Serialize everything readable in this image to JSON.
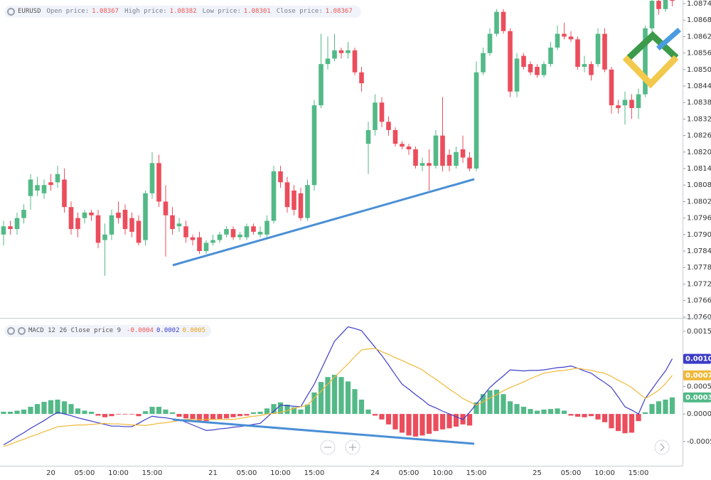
{
  "chart_data": [
    {
      "type": "candlestick",
      "symbol": "EURUSD",
      "fields": [
        {
          "label": "Open price:",
          "value": 1.08367
        },
        {
          "label": "High price:",
          "value": 1.08382
        },
        {
          "label": "Low price:",
          "value": 1.08301
        },
        {
          "label": "Close price:",
          "value": 1.08367
        }
      ],
      "up_color": "#53b987",
      "down_color": "#eb4d5c",
      "open": [
        1.079,
        1.0793,
        1.0792,
        1.0796,
        1.0804,
        1.0806,
        1.0805,
        1.0809,
        1.0809,
        1.081,
        1.08,
        1.0796,
        1.0796,
        1.0798,
        1.0797,
        1.0788,
        1.079,
        1.0798,
        1.0799,
        1.0796,
        1.0795,
        1.0788,
        1.0805,
        1.0816,
        1.0802,
        1.0797,
        1.0793,
        1.0793,
        1.0789,
        1.0789,
        1.0784,
        1.0787,
        1.0788,
        1.079,
        1.0792,
        1.0789,
        1.0789,
        1.0793,
        1.079,
        1.079,
        1.0795,
        1.0813,
        1.0809,
        1.0806,
        1.0805,
        1.0796,
        1.0808,
        1.0837,
        1.0852,
        1.0854,
        1.0857,
        1.0856,
        1.0857,
        1.0849,
        1.0823,
        1.0828,
        1.0838,
        1.0831,
        1.0828,
        1.0823,
        1.0822,
        1.0821,
        1.0815,
        1.0816,
        1.0815,
        1.0826,
        1.0819,
        1.0815,
        1.0821,
        1.0818,
        1.0814,
        1.0849,
        1.0856,
        1.0863,
        1.0871,
        1.0864,
        1.0842,
        1.0855,
        1.0852,
        1.0851,
        1.0848,
        1.0852,
        1.0858,
        1.0863,
        1.0862,
        1.0861,
        1.0851,
        1.0852,
        1.0852,
        1.0863,
        1.085,
        1.0837,
        1.0837,
        1.0839,
        1.0836,
        1.0841,
        1.0865,
        1.0875,
        1.0872,
        1.0876
      ],
      "high": [
        1.0795,
        1.0795,
        1.0798,
        1.0801,
        1.0812,
        1.0811,
        1.081,
        1.0812,
        1.0815,
        1.0814,
        1.0802,
        1.0798,
        1.0799,
        1.0799,
        1.0799,
        1.0794,
        1.0799,
        1.0802,
        1.0801,
        1.0798,
        1.0797,
        1.0806,
        1.082,
        1.0819,
        1.0808,
        1.08,
        1.0796,
        1.0795,
        1.079,
        1.0791,
        1.0788,
        1.079,
        1.0791,
        1.0793,
        1.0793,
        1.0791,
        1.0794,
        1.0794,
        1.0793,
        1.0797,
        1.0815,
        1.0815,
        1.0811,
        1.0808,
        1.0807,
        1.081,
        1.0839,
        1.0863,
        1.0862,
        1.0863,
        1.0858,
        1.086,
        1.0858,
        1.0851,
        1.0831,
        1.0841,
        1.084,
        1.0833,
        1.0829,
        1.0824,
        1.0823,
        1.0822,
        1.0818,
        1.0821,
        1.0828,
        1.084,
        1.0821,
        1.0822,
        1.0826,
        1.082,
        1.0853,
        1.0858,
        1.0865,
        1.0872,
        1.0872,
        1.0865,
        1.0856,
        1.0856,
        1.0853,
        1.0852,
        1.0853,
        1.086,
        1.0866,
        1.0867,
        1.0864,
        1.0862,
        1.0855,
        1.0853,
        1.0865,
        1.0865,
        1.0851,
        1.0839,
        1.0842,
        1.0841,
        1.0843,
        1.0866,
        1.0876,
        1.0876,
        1.0877,
        1.0877
      ],
      "low": [
        1.0786,
        1.079,
        1.079,
        1.0794,
        1.0799,
        1.0804,
        1.0803,
        1.0806,
        1.0807,
        1.0798,
        1.079,
        1.0789,
        1.0794,
        1.0795,
        1.0785,
        1.0775,
        1.0788,
        1.0794,
        1.079,
        1.0789,
        1.0786,
        1.0786,
        1.0803,
        1.08,
        1.0782,
        1.079,
        1.0791,
        1.0787,
        1.0786,
        1.0783,
        1.0783,
        1.0786,
        1.0787,
        1.0789,
        1.0788,
        1.0788,
        1.0788,
        1.079,
        1.0789,
        1.0789,
        1.0794,
        1.0807,
        1.0798,
        1.0797,
        1.0795,
        1.0795,
        1.0806,
        1.0836,
        1.085,
        1.0853,
        1.0854,
        1.0854,
        1.0848,
        1.0842,
        1.0812,
        1.0826,
        1.0829,
        1.0826,
        1.0822,
        1.0821,
        1.0819,
        1.0814,
        1.0813,
        1.0806,
        1.0814,
        1.0813,
        1.0813,
        1.0814,
        1.0816,
        1.0813,
        1.0813,
        1.0848,
        1.0855,
        1.0862,
        1.0863,
        1.084,
        1.084,
        1.085,
        1.0848,
        1.0847,
        1.0847,
        1.0851,
        1.0857,
        1.0861,
        1.086,
        1.085,
        1.0849,
        1.0846,
        1.0851,
        1.0849,
        1.0834,
        1.0834,
        1.083,
        1.0832,
        1.0832,
        1.084,
        1.0863,
        1.087,
        1.0871,
        1.0873
      ],
      "close": [
        1.0793,
        1.0792,
        1.0796,
        1.0799,
        1.081,
        1.0808,
        1.0808,
        1.0808,
        1.0812,
        1.08,
        1.0792,
        1.0792,
        1.0798,
        1.0797,
        1.0787,
        1.079,
        1.0797,
        1.0796,
        1.0792,
        1.0791,
        1.0787,
        1.0805,
        1.0816,
        1.0802,
        1.0797,
        1.0792,
        1.0794,
        1.0789,
        1.0788,
        1.0784,
        1.0787,
        1.0788,
        1.079,
        1.0792,
        1.0789,
        1.079,
        1.0793,
        1.0791,
        1.0791,
        1.0795,
        1.0813,
        1.0809,
        1.08,
        1.0799,
        1.0796,
        1.0808,
        1.0837,
        1.0852,
        1.0854,
        1.0857,
        1.0856,
        1.0857,
        1.0849,
        1.0845,
        1.0828,
        1.0838,
        1.0831,
        1.0828,
        1.0823,
        1.0822,
        1.0821,
        1.0815,
        1.0816,
        1.0815,
        1.0826,
        1.0815,
        1.0815,
        1.082,
        1.0818,
        1.0814,
        1.0849,
        1.0856,
        1.0863,
        1.0871,
        1.0864,
        1.0842,
        1.0854,
        1.0851,
        1.0849,
        1.0848,
        1.0852,
        1.0858,
        1.0863,
        1.0862,
        1.0861,
        1.0851,
        1.0852,
        1.0848,
        1.0863,
        1.085,
        1.0837,
        1.0836,
        1.0839,
        1.0836,
        1.0841,
        1.0865,
        1.0875,
        1.0872,
        1.0876,
        1.0875
      ],
      "ylim": [
        1.07597,
        1.08753
      ],
      "yticks": [
        {
          "value": 1.0874,
          "label": "1.08740"
        },
        {
          "value": 1.0868,
          "label": "1.08680"
        },
        {
          "value": 1.0862,
          "label": "1.08620"
        },
        {
          "value": 1.0856,
          "label": "1.08560"
        },
        {
          "value": 1.085,
          "label": "1.08500"
        },
        {
          "value": 1.0844,
          "label": "1.08440"
        },
        {
          "value": 1.0838,
          "label": "1.08380"
        },
        {
          "value": 1.0832,
          "label": "1.08320"
        },
        {
          "value": 1.0826,
          "label": "1.08260"
        },
        {
          "value": 1.082,
          "label": "1.08200"
        },
        {
          "value": 1.0814,
          "label": "1.08140"
        },
        {
          "value": 1.0808,
          "label": "1.08080"
        },
        {
          "value": 1.0802,
          "label": "1.08020"
        },
        {
          "value": 1.0796,
          "label": "1.07960"
        },
        {
          "value": 1.079,
          "label": "1.07900"
        },
        {
          "value": 1.0784,
          "label": "1.07840"
        },
        {
          "value": 1.0778,
          "label": "1.07780"
        },
        {
          "value": 1.0772,
          "label": "1.07720"
        },
        {
          "value": 1.0766,
          "label": "1.07660"
        },
        {
          "value": 1.076,
          "label": "1.07600"
        }
      ]
    },
    {
      "type": "macd",
      "title": "MACD 12 26 Close price 9",
      "legend_values": [
        -0.0004,
        0.0002,
        0.0005
      ],
      "categories": [
        null,
        null,
        null,
        null,
        null,
        null,
        null,
        "20",
        null,
        null,
        null,
        null,
        "05:00",
        null,
        null,
        null,
        null,
        "10:00",
        null,
        null,
        null,
        null,
        "15:00",
        null,
        null,
        null,
        null,
        null,
        null,
        null,
        null,
        "21",
        null,
        null,
        null,
        null,
        "05:00",
        null,
        null,
        null,
        null,
        "10:00",
        null,
        null,
        null,
        null,
        "15:00",
        null,
        null,
        null,
        null,
        null,
        null,
        null,
        null,
        "24",
        null,
        null,
        null,
        null,
        "05:00",
        null,
        null,
        null,
        null,
        "10:00",
        null,
        null,
        null,
        null,
        "15:00",
        null,
        null,
        null,
        null,
        null,
        null,
        null,
        null,
        "25",
        null,
        null,
        null,
        null,
        "05:00",
        null,
        null,
        null,
        null,
        "10:00",
        null,
        null,
        null,
        null,
        "15:00",
        null,
        null,
        null,
        null,
        null
      ],
      "histogram": {
        "up_color": "#53b987",
        "down_color": "#eb4d5c",
        "marker": {
          "value": 0.0003,
          "label": "0.0003"
        },
        "values": [
          4e-05,
          4e-05,
          6e-05,
          8e-05,
          0.00013,
          0.00018,
          0.00022,
          0.00025,
          0.00026,
          0.00023,
          0.00018,
          0.0001,
          6e-05,
          4e-05,
          -3e-05,
          -6e-05,
          -4e-05,
          -1e-05,
          -1e-05,
          -1e-05,
          -4e-05,
          5e-05,
          0.00013,
          0.00013,
          8e-05,
          3e-05,
          -5e-05,
          -8e-05,
          -9e-05,
          -0.00012,
          -0.00013,
          -0.0001,
          -9e-05,
          -8e-05,
          -6e-05,
          -4e-05,
          -3e-05,
          3e-05,
          4e-05,
          0.0001,
          0.00018,
          0.00021,
          0.00017,
          0.00012,
          8e-05,
          0.00017,
          0.00039,
          0.00058,
          0.00067,
          0.00071,
          0.00067,
          0.00059,
          0.00045,
          0.00026,
          8e-05,
          -3e-05,
          -0.0001,
          -0.00019,
          -0.00028,
          -0.00034,
          -0.00039,
          -0.00041,
          -0.00039,
          -0.00036,
          -0.00031,
          -0.00028,
          -0.00026,
          -0.00023,
          -0.00019,
          -0.00021,
          0.00021,
          0.00036,
          0.00043,
          0.00044,
          0.00036,
          0.00023,
          0.00018,
          0.00013,
          9e-05,
          6e-05,
          8e-05,
          9e-05,
          0.0001,
          6e-05,
          -3e-05,
          -5e-05,
          -6e-05,
          -4e-05,
          -0.0001,
          -0.00015,
          -0.00026,
          -0.00031,
          -0.00035,
          -0.00034,
          -0.00013,
          3e-05,
          0.00018,
          0.00023,
          0.00026,
          0.0003
        ]
      },
      "series": [
        {
          "color": "#3d3dc8",
          "marker": {
            "value": 0.001,
            "label": "0.0010"
          },
          "values": [
            -0.00056,
            -0.00049,
            -0.00041,
            -0.00034,
            -0.00026,
            -0.00019,
            -0.00012,
            -4e-05,
            3e-05,
            0,
            -3e-05,
            -7e-05,
            -0.0001,
            -0.00013,
            -0.00016,
            -0.00019,
            -0.00022,
            -0.00022,
            -0.00023,
            -0.00023,
            -0.00017,
            -0.0001,
            -4e-05,
            -6e-05,
            -7e-05,
            -9e-05,
            -0.0001,
            -0.00015,
            -0.0002,
            -0.00025,
            -0.0003,
            -0.00029,
            -0.00027,
            -0.00026,
            -0.00024,
            -0.00023,
            -0.00021,
            -0.00019,
            -0.00017,
            -6e-05,
            5e-05,
            0.00016,
            0.00015,
            0.00014,
            0.00013,
            0.00034,
            0.00054,
            0.0008,
            0.00106,
            0.00132,
            0.00145,
            0.00158,
            0.00155,
            0.00151,
            0.00136,
            0.00121,
            0.00106,
            0.00089,
            0.00071,
            0.00054,
            0.00045,
            0.00035,
            0.00026,
            0.00016,
            0.00011,
            5e-05,
            0,
            -5e-05,
            -0.0001,
            3e-05,
            0.00018,
            0.00033,
            0.00048,
            0.00059,
            0.00069,
            0.0008,
            0.00079,
            0.00078,
            0.00079,
            0.00079,
            0.0008,
            0.00082,
            0.00084,
            0.00085,
            0.00087,
            0.00083,
            0.00078,
            0.00074,
            0.00065,
            0.00057,
            0.00048,
            0.00031,
            0.00013,
            7e-05,
            0,
            0.00028,
            0.00045,
            0.00062,
            0.00078,
            0.001
          ]
        },
        {
          "color": "#f0b93b",
          "marker": {
            "value": 0.0007,
            "label": "0.0007"
          },
          "values": [
            -0.00059,
            -0.00055,
            -0.0005,
            -0.00046,
            -0.00041,
            -0.00037,
            -0.00032,
            -0.00028,
            -0.00023,
            -0.00022,
            -0.00021,
            -0.0002,
            -0.0002,
            -0.00019,
            -0.00018,
            -0.00017,
            -0.00018,
            -0.00018,
            -0.00019,
            -0.0002,
            -0.0002,
            -0.00021,
            -0.00019,
            -0.00017,
            -0.00016,
            -0.00014,
            -0.00012,
            -0.0001,
            -0.0001,
            -0.0001,
            -0.0001,
            -0.0001,
            -0.0001,
            -0.0001,
            -0.0001,
            -8e-05,
            -6e-05,
            -4e-05,
            -3e-05,
            0,
            1e-05,
            3e-05,
            6e-05,
            0.0001,
            0.00013,
            0.00016,
            0.00029,
            0.00041,
            0.00054,
            0.00067,
            0.00079,
            0.00091,
            0.00104,
            0.00116,
            0.00118,
            0.00119,
            0.00113,
            0.00108,
            0.00102,
            0.00097,
            0.00091,
            0.00086,
            0.0008,
            0.00071,
            0.00063,
            0.00054,
            0.00045,
            0.00037,
            0.00028,
            0.00022,
            0.00016,
            0.00022,
            0.00029,
            0.00035,
            0.00042,
            0.00048,
            0.00053,
            0.00058,
            0.00064,
            0.00069,
            0.00074,
            0.00076,
            0.00078,
            0.00079,
            0.00081,
            0.00083,
            0.00081,
            0.00079,
            0.00076,
            0.00074,
            0.00068,
            0.00061,
            0.00055,
            0.00048,
            0.00038,
            0.00028,
            0.00035,
            0.00043,
            0.00055,
            0.0007
          ]
        }
      ],
      "ylim": [
        -0.00094,
        0.00173
      ],
      "yticks": [
        0.0015,
        {
          "value": 0.001,
          "label": "0.0010"
        },
        0.0005,
        {
          "value": 0,
          "label": "0.0000"
        },
        -0.0005
      ]
    }
  ]
}
